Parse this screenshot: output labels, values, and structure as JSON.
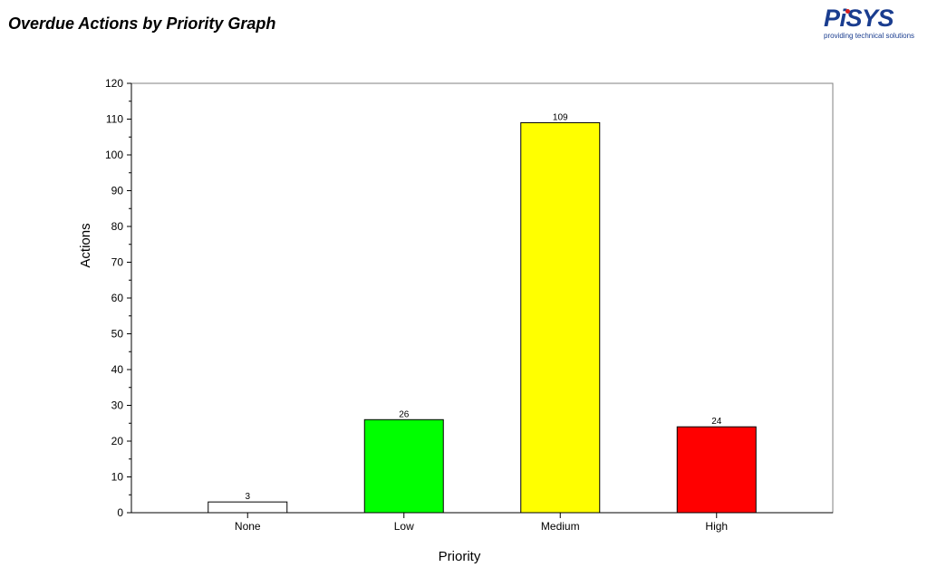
{
  "header": {
    "title": "Overdue Actions by Priority Graph",
    "logo": {
      "word": "PiSYS",
      "tagline": "providing technical solutions"
    }
  },
  "chart_data": {
    "type": "bar",
    "title": "",
    "xlabel": "Priority",
    "ylabel": "Actions",
    "categories": [
      "None",
      "Low",
      "Medium",
      "High"
    ],
    "values": [
      3,
      26,
      109,
      24
    ],
    "colors": [
      "#ffffff",
      "#00ff00",
      "#ffff00",
      "#ff0000"
    ],
    "ylim": [
      0,
      120
    ],
    "yticks": [
      0,
      10,
      20,
      30,
      40,
      50,
      60,
      70,
      80,
      90,
      100,
      110,
      120
    ],
    "data_labels": true,
    "grid": false,
    "legend": "none"
  }
}
